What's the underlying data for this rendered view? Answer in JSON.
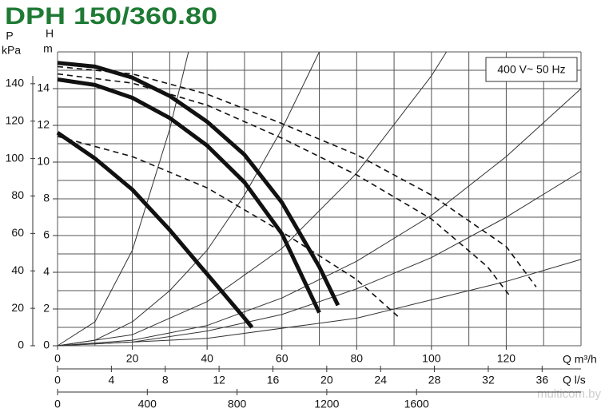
{
  "chart_data": {
    "type": "line",
    "title": "DPH 150/360.80",
    "annotation": "400 V~ 50 Hz",
    "watermark": "multicom.by",
    "y_label_symbol": "H",
    "y_label_unit": "m",
    "y2_label_symbol": "P",
    "y2_label_unit": "kPa",
    "x_label": "Q m³/h",
    "xlim": [
      0,
      140
    ],
    "xticks": [
      0,
      20,
      40,
      60,
      80,
      100,
      120
    ],
    "xgrid": [
      0,
      10,
      20,
      30,
      40,
      50,
      60,
      70,
      80,
      90,
      100,
      110,
      120,
      130,
      140
    ],
    "ylim": [
      0,
      16
    ],
    "yticks": [
      0,
      2,
      4,
      6,
      8,
      10,
      12,
      14
    ],
    "ygrid": [
      0,
      1,
      2,
      3,
      4,
      5,
      6,
      7,
      8,
      9,
      10,
      11,
      12,
      13,
      14,
      15,
      16
    ],
    "y2lim": [
      0,
      157
    ],
    "y2ticks": [
      0,
      20,
      40,
      60,
      80,
      100,
      120,
      140
    ],
    "x2_label": "Q l/s",
    "x2lim": [
      0,
      38.89
    ],
    "x2ticks": [
      0,
      4,
      8,
      12,
      16,
      20,
      24,
      28,
      32,
      36
    ],
    "x3lim": [
      0,
      2333
    ],
    "x3ticks": [
      0,
      400,
      800,
      1200,
      1600
    ],
    "grid": true,
    "series": [
      {
        "style": "pump",
        "color": "#111111",
        "x": [
          0,
          10,
          20,
          30,
          40,
          50,
          60,
          70,
          75
        ],
        "values": [
          15.4,
          15.2,
          14.6,
          13.6,
          12.2,
          10.4,
          7.8,
          4.3,
          2.2
        ]
      },
      {
        "style": "pump",
        "color": "#111111",
        "x": [
          0,
          10,
          20,
          30,
          40,
          50,
          60,
          70
        ],
        "values": [
          14.5,
          14.2,
          13.5,
          12.4,
          10.9,
          8.9,
          6.1,
          1.8
        ]
      },
      {
        "style": "pump",
        "color": "#111111",
        "x": [
          0,
          10,
          20,
          30,
          40,
          50,
          52
        ],
        "values": [
          11.6,
          10.2,
          8.5,
          6.3,
          3.9,
          1.5,
          1.0
        ]
      },
      {
        "style": "power",
        "color": "#111111",
        "x": [
          0,
          20,
          40,
          60,
          80,
          100,
          120,
          128
        ],
        "values": [
          15.2,
          14.8,
          13.7,
          12.1,
          10.4,
          8.2,
          5.4,
          3.2
        ]
      },
      {
        "style": "power",
        "color": "#111111",
        "x": [
          0,
          20,
          40,
          60,
          80,
          100,
          115,
          121
        ],
        "values": [
          14.8,
          14.3,
          13.1,
          11.3,
          9.3,
          6.9,
          4.3,
          2.7
        ]
      },
      {
        "style": "power",
        "color": "#111111",
        "x": [
          0,
          20,
          40,
          60,
          80,
          91
        ],
        "values": [
          11.4,
          10.3,
          8.6,
          6.2,
          3.6,
          1.6
        ]
      },
      {
        "style": "system",
        "color": "#333333",
        "x": [
          0,
          10,
          20,
          30,
          35
        ],
        "values": [
          0,
          1.3,
          5.2,
          11.8,
          16
        ]
      },
      {
        "style": "system",
        "color": "#333333",
        "x": [
          0,
          10,
          20,
          30,
          40,
          50,
          60,
          70
        ],
        "values": [
          0,
          0.3,
          1.3,
          3.0,
          5.2,
          8.2,
          11.8,
          16
        ]
      },
      {
        "style": "system",
        "color": "#333333",
        "x": [
          0,
          20,
          40,
          60,
          80,
          100,
          104
        ],
        "values": [
          0,
          0.6,
          2.4,
          5.3,
          9.4,
          14.7,
          16
        ]
      },
      {
        "style": "system",
        "color": "#333333",
        "x": [
          0,
          20,
          40,
          60,
          80,
          100,
          120,
          140
        ],
        "values": [
          0,
          0.3,
          1.1,
          2.6,
          4.6,
          7.1,
          10.3,
          14
        ]
      },
      {
        "style": "system",
        "color": "#333333",
        "x": [
          0,
          20,
          40,
          60,
          80,
          100,
          120,
          140
        ],
        "values": [
          0,
          0.2,
          0.8,
          1.7,
          3.1,
          4.8,
          7.0,
          9.5
        ]
      },
      {
        "style": "system",
        "color": "#333333",
        "x": [
          0,
          40,
          80,
          120,
          140
        ],
        "values": [
          0,
          0.4,
          1.5,
          3.5,
          4.7
        ]
      }
    ]
  }
}
